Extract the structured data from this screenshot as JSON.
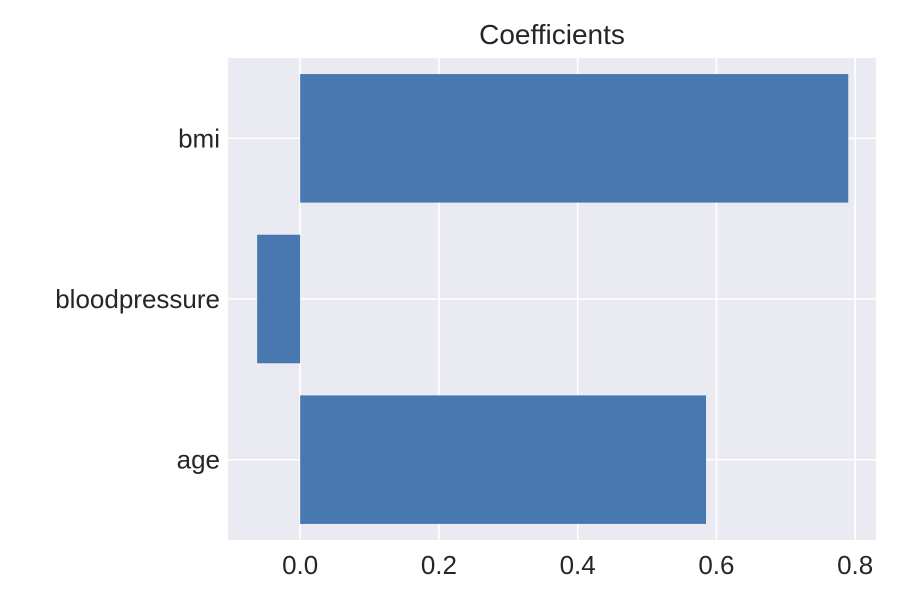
{
  "chart_data": {
    "type": "bar",
    "orientation": "horizontal",
    "title": "Coefficients",
    "xlabel": "",
    "ylabel": "",
    "categories": [
      "age",
      "bloodpressure",
      "bmi"
    ],
    "values": [
      0.585,
      -0.062,
      0.79
    ],
    "xlim": [
      -0.104,
      0.83
    ],
    "xticks": [
      "0.0",
      "0.2",
      "0.4",
      "0.6",
      "0.8"
    ],
    "grid": true,
    "bar_color": "#4878b0",
    "background_color": "#eaeaf2"
  }
}
